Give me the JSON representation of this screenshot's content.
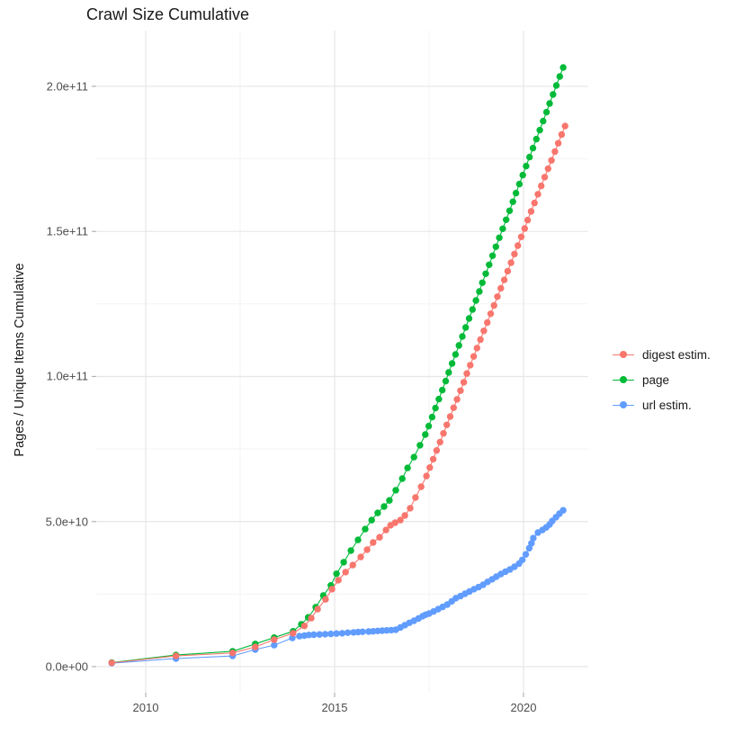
{
  "chart": {
    "title": "Crawl Size Cumulative",
    "y_axis_title": "Pages / Unique Items Cumulative"
  },
  "legend": {
    "items": [
      {
        "label": "digest estim.",
        "color": "#F8766D"
      },
      {
        "label": "page",
        "color": "#00BA38"
      },
      {
        "label": "url estim.",
        "color": "#619CFF"
      }
    ]
  },
  "chart_data": {
    "type": "scatter",
    "title": "Crawl Size Cumulative",
    "xlabel": "",
    "ylabel": "Pages / Unique Items Cumulative",
    "grid": true,
    "legend_position": "right",
    "value_unit": "billions (1e9) of pages / unique items",
    "xlim": [
      2008.7,
      2021.8
    ],
    "ylim_e9": [
      0,
      215
    ],
    "x_ticks": {
      "values": [
        2010,
        2015,
        2020
      ],
      "labels": [
        "2010",
        "2015",
        "2020"
      ],
      "minor": [
        2012.5,
        2017.5
      ]
    },
    "y_ticks": {
      "values_e9": [
        0,
        50,
        100,
        150,
        200
      ],
      "labels": [
        "0.0e+00",
        "5.0e+10",
        "1.0e+11",
        "1.5e+11",
        "2.0e+11"
      ],
      "minor_e9": [
        25,
        75,
        125,
        175
      ]
    },
    "series": [
      {
        "name": "digest estim.",
        "color": "#F8766D",
        "points_year_value_e9": [
          [
            2009.1,
            1.3
          ],
          [
            2010.8,
            3.7
          ],
          [
            2012.3,
            4.7
          ],
          [
            2012.9,
            6.8
          ],
          [
            2013.4,
            9.3
          ],
          [
            2013.9,
            11.5
          ],
          [
            2014.2,
            14.0
          ],
          [
            2014.38,
            16.7
          ],
          [
            2014.55,
            19.8
          ],
          [
            2014.76,
            23.2
          ],
          [
            2014.93,
            26.7
          ],
          [
            2015.1,
            29.8
          ],
          [
            2015.29,
            32.6
          ],
          [
            2015.48,
            35.0
          ],
          [
            2015.69,
            37.8
          ],
          [
            2015.86,
            40.3
          ],
          [
            2016.02,
            42.8
          ],
          [
            2016.19,
            44.6
          ],
          [
            2016.36,
            47.1
          ],
          [
            2016.48,
            48.7
          ],
          [
            2016.6,
            49.6
          ],
          [
            2016.74,
            50.5
          ],
          [
            2016.86,
            52.1
          ],
          [
            2017.0,
            54.6
          ],
          [
            2017.14,
            58.3
          ],
          [
            2017.29,
            62.0
          ],
          [
            2017.43,
            65.7
          ],
          [
            2017.52,
            68.6
          ],
          [
            2017.61,
            71.5
          ],
          [
            2017.7,
            74.5
          ],
          [
            2017.79,
            77.4
          ],
          [
            2017.88,
            80.4
          ],
          [
            2017.97,
            83.3
          ],
          [
            2018.06,
            86.2
          ],
          [
            2018.15,
            89.2
          ],
          [
            2018.24,
            92.1
          ],
          [
            2018.33,
            95.1
          ],
          [
            2018.42,
            98.0
          ],
          [
            2018.5,
            101.0
          ],
          [
            2018.59,
            103.9
          ],
          [
            2018.68,
            106.9
          ],
          [
            2018.77,
            109.8
          ],
          [
            2018.86,
            112.7
          ],
          [
            2018.95,
            115.7
          ],
          [
            2019.04,
            118.6
          ],
          [
            2019.13,
            121.6
          ],
          [
            2019.22,
            124.5
          ],
          [
            2019.31,
            127.5
          ],
          [
            2019.4,
            130.4
          ],
          [
            2019.49,
            133.3
          ],
          [
            2019.58,
            136.3
          ],
          [
            2019.67,
            139.2
          ],
          [
            2019.76,
            142.2
          ],
          [
            2019.85,
            145.1
          ],
          [
            2019.94,
            148.1
          ],
          [
            2020.03,
            151.0
          ],
          [
            2020.11,
            153.9
          ],
          [
            2020.2,
            156.9
          ],
          [
            2020.29,
            159.8
          ],
          [
            2020.38,
            162.8
          ],
          [
            2020.47,
            165.7
          ],
          [
            2020.56,
            168.7
          ],
          [
            2020.65,
            171.6
          ],
          [
            2020.74,
            174.5
          ],
          [
            2020.83,
            177.5
          ],
          [
            2020.92,
            180.4
          ],
          [
            2021.01,
            183.4
          ],
          [
            2021.1,
            186.3
          ]
        ]
      },
      {
        "name": "page",
        "color": "#00BA38",
        "points_year_value_e9": [
          [
            2009.1,
            1.4
          ],
          [
            2010.8,
            4.0
          ],
          [
            2012.3,
            5.3
          ],
          [
            2012.9,
            7.8
          ],
          [
            2013.4,
            10.0
          ],
          [
            2013.9,
            12.2
          ],
          [
            2014.12,
            14.6
          ],
          [
            2014.3,
            17.0
          ],
          [
            2014.5,
            20.5
          ],
          [
            2014.7,
            24.5
          ],
          [
            2014.9,
            28.0
          ],
          [
            2015.05,
            32.0
          ],
          [
            2015.24,
            36.0
          ],
          [
            2015.43,
            40.0
          ],
          [
            2015.62,
            43.7
          ],
          [
            2015.81,
            47.4
          ],
          [
            2015.98,
            50.5
          ],
          [
            2016.14,
            53.0
          ],
          [
            2016.31,
            55.2
          ],
          [
            2016.45,
            57.3
          ],
          [
            2016.62,
            60.8
          ],
          [
            2016.79,
            64.8
          ],
          [
            2016.93,
            68.5
          ],
          [
            2017.1,
            72.2
          ],
          [
            2017.26,
            76.3
          ],
          [
            2017.4,
            80.0
          ],
          [
            2017.49,
            82.9
          ],
          [
            2017.58,
            86.0
          ],
          [
            2017.67,
            89.1
          ],
          [
            2017.76,
            92.2
          ],
          [
            2017.85,
            95.3
          ],
          [
            2017.94,
            98.4
          ],
          [
            2018.02,
            101.4
          ],
          [
            2018.11,
            104.5
          ],
          [
            2018.2,
            107.6
          ],
          [
            2018.29,
            110.7
          ],
          [
            2018.38,
            113.8
          ],
          [
            2018.47,
            116.9
          ],
          [
            2018.56,
            120.0
          ],
          [
            2018.65,
            123.1
          ],
          [
            2018.74,
            126.2
          ],
          [
            2018.83,
            129.3
          ],
          [
            2018.91,
            132.3
          ],
          [
            2019.0,
            135.4
          ],
          [
            2019.09,
            138.5
          ],
          [
            2019.18,
            141.6
          ],
          [
            2019.27,
            144.7
          ],
          [
            2019.36,
            147.8
          ],
          [
            2019.45,
            150.9
          ],
          [
            2019.54,
            154.0
          ],
          [
            2019.63,
            157.1
          ],
          [
            2019.72,
            160.2
          ],
          [
            2019.8,
            163.2
          ],
          [
            2019.89,
            166.3
          ],
          [
            2019.98,
            169.4
          ],
          [
            2020.07,
            172.5
          ],
          [
            2020.16,
            175.6
          ],
          [
            2020.25,
            178.7
          ],
          [
            2020.34,
            181.8
          ],
          [
            2020.43,
            184.9
          ],
          [
            2020.52,
            188.0
          ],
          [
            2020.61,
            191.1
          ],
          [
            2020.69,
            194.1
          ],
          [
            2020.78,
            197.2
          ],
          [
            2020.87,
            200.3
          ],
          [
            2020.96,
            203.4
          ],
          [
            2021.05,
            206.5
          ]
        ]
      },
      {
        "name": "url estim.",
        "color": "#619CFF",
        "points_year_value_e9": [
          [
            2009.1,
            1.2
          ],
          [
            2010.8,
            2.8
          ],
          [
            2012.3,
            3.7
          ],
          [
            2012.9,
            5.9
          ],
          [
            2013.4,
            7.4
          ],
          [
            2013.88,
            9.9
          ],
          [
            2014.07,
            10.5
          ],
          [
            2014.2,
            10.7
          ],
          [
            2014.32,
            10.9
          ],
          [
            2014.45,
            11.0
          ],
          [
            2014.6,
            11.1
          ],
          [
            2014.75,
            11.2
          ],
          [
            2014.9,
            11.3
          ],
          [
            2015.05,
            11.4
          ],
          [
            2015.2,
            11.5
          ],
          [
            2015.35,
            11.7
          ],
          [
            2015.5,
            11.8
          ],
          [
            2015.62,
            11.9
          ],
          [
            2015.74,
            12.0
          ],
          [
            2015.9,
            12.1
          ],
          [
            2016.02,
            12.2
          ],
          [
            2016.14,
            12.3
          ],
          [
            2016.26,
            12.4
          ],
          [
            2016.38,
            12.5
          ],
          [
            2016.5,
            12.6
          ],
          [
            2016.62,
            12.7
          ],
          [
            2016.74,
            13.5
          ],
          [
            2016.86,
            14.3
          ],
          [
            2016.98,
            15.1
          ],
          [
            2017.1,
            15.8
          ],
          [
            2017.22,
            16.6
          ],
          [
            2017.33,
            17.4
          ],
          [
            2017.41,
            17.9
          ],
          [
            2017.5,
            18.3
          ],
          [
            2017.62,
            19.0
          ],
          [
            2017.74,
            19.8
          ],
          [
            2017.86,
            20.6
          ],
          [
            2017.98,
            21.4
          ],
          [
            2018.1,
            22.5
          ],
          [
            2018.21,
            23.6
          ],
          [
            2018.33,
            24.3
          ],
          [
            2018.45,
            25.1
          ],
          [
            2018.57,
            25.9
          ],
          [
            2018.69,
            26.7
          ],
          [
            2018.81,
            27.4
          ],
          [
            2018.93,
            28.2
          ],
          [
            2019.05,
            29.2
          ],
          [
            2019.17,
            30.1
          ],
          [
            2019.28,
            31.0
          ],
          [
            2019.4,
            31.9
          ],
          [
            2019.52,
            32.7
          ],
          [
            2019.64,
            33.5
          ],
          [
            2019.76,
            34.4
          ],
          [
            2019.88,
            35.5
          ],
          [
            2019.97,
            36.8
          ],
          [
            2020.06,
            38.7
          ],
          [
            2020.15,
            40.8
          ],
          [
            2020.21,
            42.5
          ],
          [
            2020.26,
            44.3
          ],
          [
            2020.38,
            46.2
          ],
          [
            2020.5,
            47.1
          ],
          [
            2020.6,
            48.0
          ],
          [
            2020.69,
            49.0
          ],
          [
            2020.76,
            50.2
          ],
          [
            2020.86,
            51.5
          ],
          [
            2020.95,
            52.7
          ],
          [
            2021.05,
            53.9
          ]
        ]
      }
    ]
  }
}
